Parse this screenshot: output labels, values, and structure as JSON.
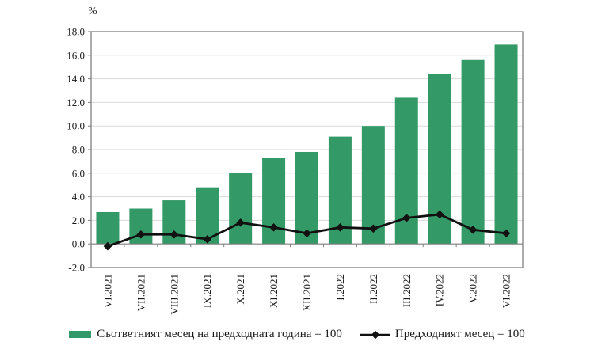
{
  "chart_data": {
    "type": "bar",
    "combo": "bar+line",
    "title": "",
    "unit_label": "%",
    "categories": [
      "VI.2021",
      "VII.2021",
      "VIII.2021",
      "IX.2021",
      "X.2021",
      "XI.2021",
      "XII.2021",
      "I.2022",
      "II.2022",
      "III.2022",
      "IV.2022",
      "V.2022",
      "VI.2022"
    ],
    "series": [
      {
        "name": "Съответният месец на предходната година = 100",
        "type": "bar",
        "color": "#339966",
        "values": [
          2.7,
          3.0,
          3.7,
          4.8,
          6.0,
          7.3,
          7.8,
          9.1,
          10.0,
          12.4,
          14.4,
          15.6,
          16.9
        ]
      },
      {
        "name": "Предходният месец = 100",
        "type": "line",
        "marker": "diamond",
        "color": "#111111",
        "values": [
          -0.2,
          0.8,
          0.8,
          0.4,
          1.8,
          1.4,
          0.9,
          1.4,
          1.3,
          2.2,
          2.5,
          1.2,
          0.9
        ]
      }
    ],
    "ylim": [
      -2.0,
      18.0
    ],
    "ytick_step": 2.0,
    "grid": true,
    "legend_position": "bottom",
    "colors": {
      "gridline": "#d9d9d9",
      "frame": "#7f7f7f",
      "text": "#1a1a1a",
      "background": "#ffffff"
    }
  }
}
